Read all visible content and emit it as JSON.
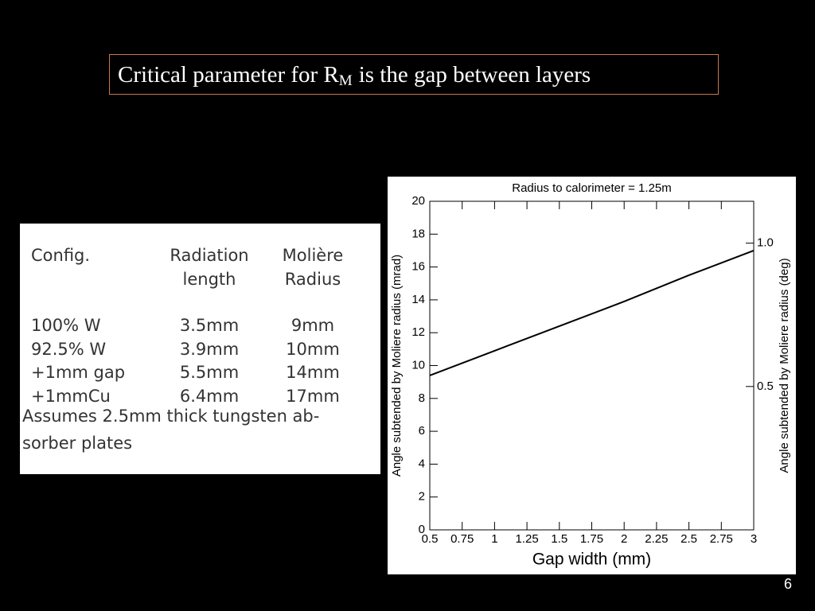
{
  "title": {
    "prefix": "Critical parameter for R",
    "subscript": "M",
    "suffix": "is the gap between layers"
  },
  "table": {
    "headers": [
      [
        "Config."
      ],
      [
        "Radiation",
        "length"
      ],
      [
        "Molière",
        "Radius"
      ]
    ],
    "rows": [
      [
        "100% W",
        "3.5mm",
        "9mm"
      ],
      [
        "92.5% W",
        "3.9mm",
        "10mm"
      ],
      [
        "+1mm gap",
        "5.5mm",
        "14mm"
      ],
      [
        "+1mmCu",
        "6.4mm",
        "17mm"
      ]
    ],
    "note": [
      "Assumes 2.5mm thick tungsten ab-",
      "sorber plates"
    ]
  },
  "chart_data": {
    "type": "line",
    "title": "Radius to calorimeter = 1.25m",
    "xlabel": "Gap width (mm)",
    "ylabel": "Angle subtended by Moliere radius (mrad)",
    "y2label": "Angle subtended by Moliere radius (deg)",
    "x": [
      0.5,
      1,
      1.5,
      2,
      2.5,
      3
    ],
    "series": [
      {
        "name": "Radius to calorimeter = 1.25m",
        "color": "#000000",
        "values": [
          9.4,
          10.9,
          12.4,
          13.9,
          15.5,
          17.0
        ]
      }
    ],
    "xlim": [
      0.5,
      3
    ],
    "xticks": [
      0.5,
      0.75,
      1,
      1.25,
      1.5,
      1.75,
      2,
      2.25,
      2.5,
      2.75,
      3
    ],
    "ylim": [
      0,
      20
    ],
    "yticks": [
      0,
      2,
      4,
      6,
      8,
      10,
      12,
      14,
      16,
      18,
      20
    ],
    "y2lim": [
      0,
      1.146
    ],
    "y2ticks": [
      0.5,
      {
        "value": 1,
        "label": "1.0"
      }
    ]
  },
  "page_number": "6"
}
